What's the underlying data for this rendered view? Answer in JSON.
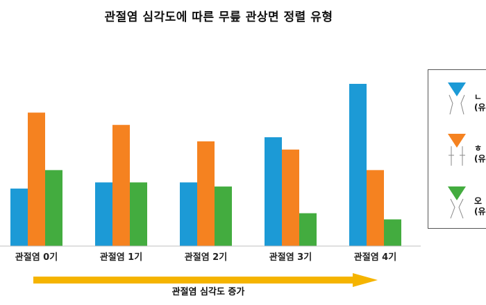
{
  "title": "관절염 심각도에 따른 무릎 관상면 정렬 유형",
  "trend_label": "관절염 심각도 증가",
  "colors": {
    "blue": "#1c9ad6",
    "orange": "#f58220",
    "green": "#43ac3f",
    "arrow": "#f5b400"
  },
  "legend": [
    {
      "color": "#1c9ad6",
      "line1": "ㄴ",
      "line2": "(유"
    },
    {
      "color": "#f58220",
      "line1": "ㅎ",
      "line2": "(유"
    },
    {
      "color": "#43ac3f",
      "line1": "오",
      "line2": "(유"
    }
  ],
  "chart_data": {
    "type": "bar",
    "title": "관절염 심각도에 따른 무릎 관상면 정렬 유형",
    "categories": [
      "관절염 0기",
      "관절염 1기",
      "관절염 2기",
      "관절염 3기",
      "관절염 4기"
    ],
    "series": [
      {
        "color": "#1c9ad6",
        "values": [
          28,
          31,
          31,
          53,
          79
        ]
      },
      {
        "color": "#f58220",
        "values": [
          65,
          59,
          51,
          47,
          37
        ]
      },
      {
        "color": "#43ac3f",
        "values": [
          37,
          31,
          29,
          16,
          13
        ]
      }
    ],
    "ylim": [
      0,
      80
    ],
    "grid": false,
    "legend_position": "right",
    "xlabel": "",
    "ylabel": ""
  }
}
